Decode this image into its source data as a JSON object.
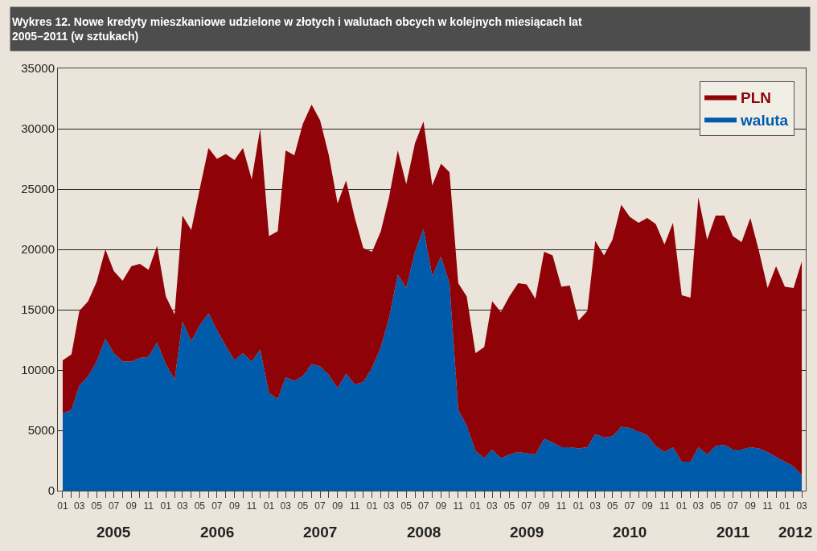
{
  "chart_data": {
    "type": "area",
    "stacked": true,
    "title": "Wykres 12. Nowe kredyty mieszkaniowe udzielone w złotych i walutach obcych w kolejnych miesiącach lat 2005–2011 (w sztukach)",
    "x": [
      "2005-01",
      "2005-02",
      "2005-03",
      "2005-04",
      "2005-05",
      "2005-06",
      "2005-07",
      "2005-08",
      "2005-09",
      "2005-10",
      "2005-11",
      "2005-12",
      "2006-01",
      "2006-02",
      "2006-03",
      "2006-04",
      "2006-05",
      "2006-06",
      "2006-07",
      "2006-08",
      "2006-09",
      "2006-10",
      "2006-11",
      "2006-12",
      "2007-01",
      "2007-02",
      "2007-03",
      "2007-04",
      "2007-05",
      "2007-06",
      "2007-07",
      "2007-08",
      "2007-09",
      "2007-10",
      "2007-11",
      "2007-12",
      "2008-01",
      "2008-02",
      "2008-03",
      "2008-04",
      "2008-05",
      "2008-06",
      "2008-07",
      "2008-08",
      "2008-09",
      "2008-10",
      "2008-11",
      "2008-12",
      "2009-01",
      "2009-02",
      "2009-03",
      "2009-04",
      "2009-05",
      "2009-06",
      "2009-07",
      "2009-08",
      "2009-09",
      "2009-10",
      "2009-11",
      "2009-12",
      "2010-01",
      "2010-02",
      "2010-03",
      "2010-04",
      "2010-05",
      "2010-06",
      "2010-07",
      "2010-08",
      "2010-09",
      "2010-10",
      "2010-11",
      "2010-12",
      "2011-01",
      "2011-02",
      "2011-03",
      "2011-04",
      "2011-05",
      "2011-06",
      "2011-07",
      "2011-08",
      "2011-09",
      "2011-10",
      "2011-11",
      "2011-12",
      "2012-01",
      "2012-02",
      "2012-03"
    ],
    "series": [
      {
        "name": "waluta",
        "color": "#005baa",
        "values": [
          6400,
          6700,
          8700,
          9500,
          10700,
          12600,
          11400,
          10700,
          10700,
          11000,
          11100,
          12300,
          10500,
          9200,
          14000,
          12400,
          13700,
          14700,
          13300,
          12000,
          10800,
          11400,
          10700,
          11700,
          8100,
          7600,
          9400,
          9100,
          9500,
          10500,
          10300,
          9600,
          8500,
          9700,
          8800,
          9000,
          10200,
          11900,
          14300,
          17900,
          16800,
          19800,
          21700,
          17800,
          19400,
          17200,
          6700,
          5400,
          3300,
          2700,
          3400,
          2700,
          3000,
          3200,
          3100,
          3000,
          4300,
          4000,
          3600,
          3600,
          3500,
          3600,
          4700,
          4400,
          4500,
          5300,
          5200,
          4900,
          4600,
          3700,
          3200,
          3600,
          2400,
          2400,
          3600,
          3000,
          3700,
          3800,
          3400,
          3400,
          3600,
          3500,
          3200,
          2800,
          2400,
          2000,
          1300
        ]
      },
      {
        "name": "PLN",
        "color": "#8f0208",
        "values": [
          4400,
          4600,
          6200,
          6200,
          6600,
          7400,
          6800,
          6700,
          7900,
          7800,
          7200,
          8000,
          5600,
          5400,
          8800,
          9200,
          11300,
          13700,
          14200,
          15900,
          16600,
          17000,
          15100,
          18300,
          13000,
          13900,
          18800,
          18700,
          20900,
          21500,
          20400,
          18200,
          15300,
          16000,
          13800,
          11100,
          9600,
          9600,
          10000,
          10300,
          8600,
          9000,
          8900,
          7500,
          7700,
          9200,
          10500,
          10700,
          8100,
          9200,
          12300,
          12100,
          13100,
          14000,
          14000,
          12900,
          15500,
          15500,
          13300,
          13400,
          10600,
          11300,
          16000,
          15100,
          16300,
          18400,
          17500,
          17300,
          18000,
          18400,
          17200,
          18600,
          13800,
          13600,
          20700,
          17800,
          19100,
          19000,
          17700,
          17200,
          19000,
          16400,
          13600,
          15800,
          14500,
          14800,
          17700
        ]
      }
    ],
    "xlim": [
      "2004-12-15",
      "2012-03-15"
    ],
    "xticks": [
      {
        "value": "2005-01",
        "label": "01"
      },
      {
        "value": "2005-03",
        "label": "03"
      },
      {
        "value": "2005-05",
        "label": "05"
      },
      {
        "value": "2005-07",
        "label": "07"
      },
      {
        "value": "2005-09",
        "label": "09"
      },
      {
        "value": "2005-11",
        "label": "11"
      },
      {
        "value": "2006-01",
        "label": "01"
      },
      {
        "value": "2006-03",
        "label": "03"
      },
      {
        "value": "2006-05",
        "label": "05"
      },
      {
        "value": "2006-07",
        "label": "07"
      },
      {
        "value": "2006-09",
        "label": "09"
      },
      {
        "value": "2006-11",
        "label": "11"
      },
      {
        "value": "2007-01",
        "label": "01"
      },
      {
        "value": "2007-03",
        "label": "03"
      },
      {
        "value": "2007-05",
        "label": "05"
      },
      {
        "value": "2007-07",
        "label": "07"
      },
      {
        "value": "2007-09",
        "label": "09"
      },
      {
        "value": "2007-11",
        "label": "11"
      },
      {
        "value": "2008-01",
        "label": "01"
      },
      {
        "value": "2008-03",
        "label": "03"
      },
      {
        "value": "2008-05",
        "label": "05"
      },
      {
        "value": "2008-07",
        "label": "07"
      },
      {
        "value": "2008-09",
        "label": "09"
      },
      {
        "value": "2008-11",
        "label": "11"
      },
      {
        "value": "2009-01",
        "label": "01"
      },
      {
        "value": "2009-03",
        "label": "03"
      },
      {
        "value": "2009-05",
        "label": "05"
      },
      {
        "value": "2009-07",
        "label": "07"
      },
      {
        "value": "2009-09",
        "label": "09"
      },
      {
        "value": "2009-11",
        "label": "11"
      },
      {
        "value": "2010-01",
        "label": "01"
      },
      {
        "value": "2010-03",
        "label": "03"
      },
      {
        "value": "2010-05",
        "label": "05"
      },
      {
        "value": "2010-07",
        "label": "07"
      },
      {
        "value": "2010-09",
        "label": "09"
      },
      {
        "value": "2010-11",
        "label": "11"
      },
      {
        "value": "2011-01",
        "label": "01"
      },
      {
        "value": "2011-03",
        "label": "03"
      },
      {
        "value": "2011-05",
        "label": "05"
      },
      {
        "value": "2011-07",
        "label": "07"
      },
      {
        "value": "2011-09",
        "label": "09"
      },
      {
        "value": "2011-11",
        "label": "11"
      },
      {
        "value": "2012-01",
        "label": "01"
      },
      {
        "value": "2012-03",
        "label": "03"
      }
    ],
    "ylim": [
      0,
      35000
    ],
    "yticks": [
      0,
      5000,
      10000,
      15000,
      20000,
      25000,
      30000,
      35000
    ],
    "grid": "y",
    "legend": "top right",
    "annotations": [
      "2005",
      "2006",
      "2007",
      "2008",
      "2009",
      "2010",
      "2011",
      "2012"
    ]
  }
}
